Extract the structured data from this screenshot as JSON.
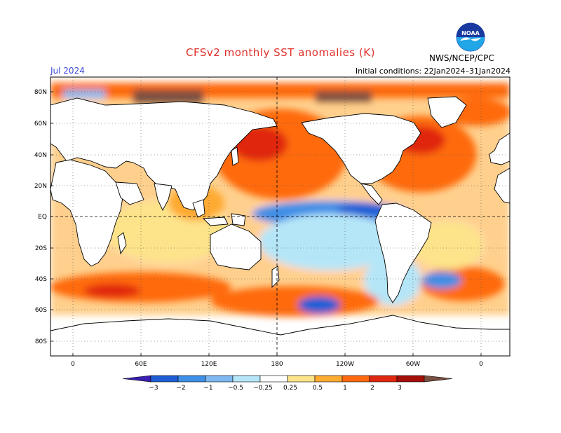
{
  "header": {
    "title": "CFSv2 monthly SST anomalies (K)",
    "month": "Jul 2024",
    "initial_conditions": "Initial conditions: 22Jan2024–31Jan2024",
    "agency": "NWS/NCEP/CPC",
    "logo_text": "NOAA"
  },
  "map": {
    "lat_labels": [
      "80N",
      "60N",
      "40N",
      "20N",
      "EQ",
      "20S",
      "40S",
      "60S",
      "80S"
    ],
    "lon_labels": [
      "0",
      "60E",
      "120E",
      "180",
      "120W",
      "60W",
      "0"
    ]
  },
  "colorbar": {
    "labels": [
      "−3",
      "−2",
      "−1",
      "−0.5",
      "−0.25",
      "0.25",
      "0.5",
      "1",
      "2",
      "3"
    ],
    "colors": [
      "#3a1fb0",
      "#1f5fd6",
      "#3f8fe6",
      "#7fb8f0",
      "#b5e6f8",
      "#ffffff",
      "#fde38a",
      "#ffaa30",
      "#ff6a10",
      "#e02810",
      "#a50f0a",
      "#7a5040"
    ]
  }
}
